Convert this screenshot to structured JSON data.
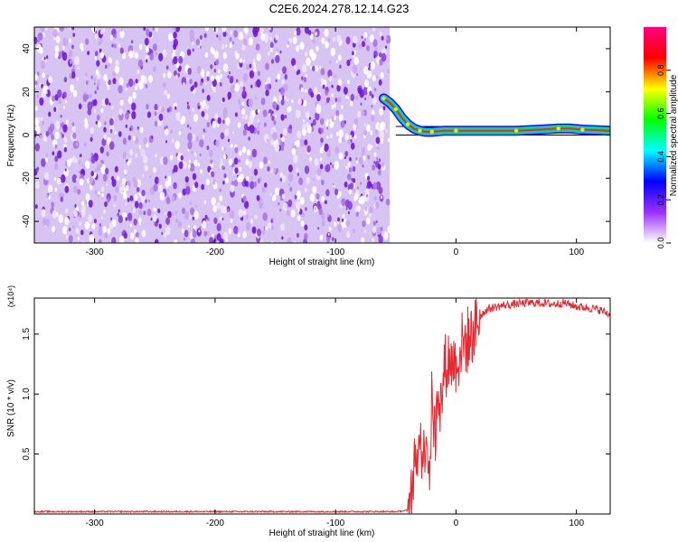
{
  "title": "C2E6.2024.278.12.14.G23",
  "chart_data": [
    {
      "type": "heatmap",
      "title": "C2E6.2024.278.12.14.G23",
      "xlabel": "Height of straight line (km)",
      "ylabel": "Frequency (Hz)",
      "xlim": [
        -350,
        128
      ],
      "ylim": [
        -50,
        50
      ],
      "xticks": [
        -300,
        -200,
        -100,
        0,
        100
      ],
      "yticks": [
        -40,
        -20,
        0,
        20,
        40
      ],
      "xtick_labels": [
        "-300",
        "-200",
        "-100",
        "0",
        "100"
      ],
      "ytick_labels": [
        "-40",
        "-20",
        "0",
        "20",
        "40"
      ],
      "grid": false,
      "noise_region_x": [
        -350,
        -55
      ],
      "signal_track": {
        "x": [
          -60,
          -55,
          -50,
          -45,
          -40,
          -35,
          -30,
          -25,
          -20,
          -10,
          0,
          20,
          50,
          70,
          85,
          95,
          105,
          128
        ],
        "y": [
          17,
          15,
          12,
          8,
          5,
          3,
          2,
          1.5,
          1.5,
          2,
          2,
          2,
          2,
          2.5,
          3,
          3,
          2.5,
          2
        ],
        "bounding_line_upper": 4,
        "bounding_line_lower": 0
      },
      "colorbar": {
        "label": "Normalized spectral amplitude",
        "range": [
          0.0,
          1.0
        ],
        "ticks": [
          0.0,
          0.2,
          0.4,
          0.6,
          0.8
        ],
        "tick_labels": [
          "0.0",
          "0.2",
          "0.4",
          "0.6",
          "0.8"
        ],
        "colors": [
          "#ffffff",
          "#9b30ff",
          "#0000ff",
          "#00ffff",
          "#00ff00",
          "#ffff00",
          "#ff0000",
          "#ff0080"
        ]
      }
    },
    {
      "type": "line",
      "xlabel": "Height of straight line (km)",
      "ylabel": "SNR (10 * v/v)",
      "scale_note": "(x10⁴)",
      "xlim": [
        -350,
        128
      ],
      "ylim": [
        0,
        1.8
      ],
      "xticks": [
        -300,
        -200,
        -100,
        0,
        100
      ],
      "yticks": [
        0.5,
        1.0,
        1.5
      ],
      "xtick_labels": [
        "-300",
        "-200",
        "-100",
        "0",
        "100"
      ],
      "ytick_labels": [
        "0.5",
        "1.0",
        "1.5"
      ],
      "grid": false,
      "series": [
        {
          "color": "#e8282e",
          "x": [
            -350,
            -300,
            -250,
            -200,
            -150,
            -100,
            -50,
            -40,
            -36,
            -33,
            -30,
            -27,
            -25,
            -22,
            -20,
            -17,
            -15,
            -12,
            -10,
            -5,
            0,
            5,
            10,
            15,
            20,
            25,
            30,
            40,
            50,
            60,
            70,
            80,
            90,
            100,
            110,
            120,
            128
          ],
          "y": [
            0.02,
            0.02,
            0.02,
            0.02,
            0.02,
            0.02,
            0.02,
            0.03,
            0.2,
            0.5,
            0.7,
            0.4,
            0.8,
            0.3,
            1.0,
            0.6,
            1.1,
            0.9,
            1.2,
            1.3,
            1.25,
            1.4,
            1.45,
            1.55,
            1.65,
            1.7,
            1.72,
            1.74,
            1.75,
            1.76,
            1.76,
            1.75,
            1.76,
            1.73,
            1.72,
            1.7,
            1.66
          ]
        }
      ]
    }
  ]
}
